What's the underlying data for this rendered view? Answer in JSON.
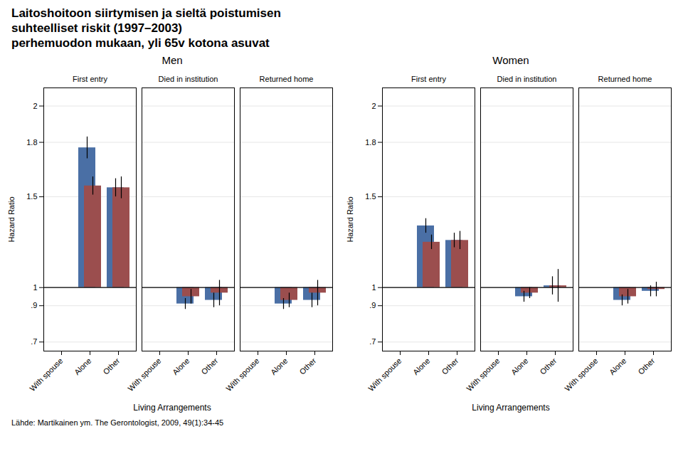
{
  "title": [
    "Laitoshoitoon siirtymisen ja sieltä poistumisen",
    "suhteelliset riskit (1997–2003)",
    "perhemuodon mukaan, yli 65v kotona asuvat"
  ],
  "caption": "Lähde: Martikainen ym. The Gerontologist, 2009, 49(1):34-45",
  "chart_data": [
    {
      "type": "bar",
      "title": "Men",
      "xlabel": "Living Arrangements",
      "ylabel": "Hazard Ratio",
      "categories": [
        "With spouse",
        "Alone",
        "Other"
      ],
      "ylim": [
        0.65,
        2.1
      ],
      "yticks": [
        {
          "value": 0.7,
          "label": ".7"
        },
        {
          "value": 0.9,
          "label": ".9"
        },
        1,
        1.5,
        1.8,
        2
      ],
      "grid": true,
      "reference_line": 1.0,
      "panels": [
        {
          "title": "First entry",
          "series": [
            {
              "color": "#4a6fa5",
              "values": [
                1.0,
                1.77,
                1.55
              ],
              "errors": [
                0.0,
                0.06,
                0.05
              ]
            },
            {
              "color": "#9b4e4e",
              "values": [
                1.0,
                1.56,
                1.55
              ],
              "errors": [
                0.0,
                0.05,
                0.06
              ]
            }
          ]
        },
        {
          "title": "Died in institution",
          "series": [
            {
              "color": "#4a6fa5",
              "values": [
                1.0,
                0.91,
                0.93
              ],
              "errors": [
                0.0,
                0.03,
                0.04
              ]
            },
            {
              "color": "#9b4e4e",
              "values": [
                1.0,
                0.95,
                0.97
              ],
              "errors": [
                0.0,
                0.04,
                0.07
              ]
            }
          ]
        },
        {
          "title": "Returned home",
          "series": [
            {
              "color": "#4a6fa5",
              "values": [
                1.0,
                0.91,
                0.93
              ],
              "errors": [
                0.0,
                0.03,
                0.04
              ]
            },
            {
              "color": "#9b4e4e",
              "values": [
                1.0,
                0.93,
                0.97
              ],
              "errors": [
                0.0,
                0.04,
                0.07
              ]
            }
          ]
        }
      ]
    },
    {
      "type": "bar",
      "title": "Women",
      "xlabel": "Living Arrangements",
      "ylabel": "Hazard Ratio",
      "categories": [
        "With spouse",
        "Alone",
        "Other"
      ],
      "ylim": [
        0.65,
        2.1
      ],
      "yticks": [
        {
          "value": 0.7,
          "label": ".7"
        },
        {
          "value": 0.9,
          "label": ".9"
        },
        1,
        1.5,
        1.8,
        2
      ],
      "grid": true,
      "reference_line": 1.0,
      "panels": [
        {
          "title": "First entry",
          "series": [
            {
              "color": "#4a6fa5",
              "values": [
                1.0,
                1.34,
                1.26
              ],
              "errors": [
                0.0,
                0.04,
                0.04
              ]
            },
            {
              "color": "#9b4e4e",
              "values": [
                1.0,
                1.25,
                1.26
              ],
              "errors": [
                0.0,
                0.04,
                0.05
              ]
            }
          ]
        },
        {
          "title": "Died in institution",
          "series": [
            {
              "color": "#4a6fa5",
              "values": [
                1.0,
                0.95,
                1.01
              ],
              "errors": [
                0.0,
                0.03,
                0.05
              ]
            },
            {
              "color": "#9b4e4e",
              "values": [
                1.0,
                0.97,
                1.01
              ],
              "errors": [
                0.0,
                0.03,
                0.09
              ]
            }
          ]
        },
        {
          "title": "Returned home",
          "series": [
            {
              "color": "#4a6fa5",
              "values": [
                1.0,
                0.93,
                0.98
              ],
              "errors": [
                0.0,
                0.03,
                0.03
              ]
            },
            {
              "color": "#9b4e4e",
              "values": [
                1.0,
                0.95,
                0.99
              ],
              "errors": [
                0.0,
                0.04,
                0.04
              ]
            }
          ]
        }
      ]
    }
  ]
}
